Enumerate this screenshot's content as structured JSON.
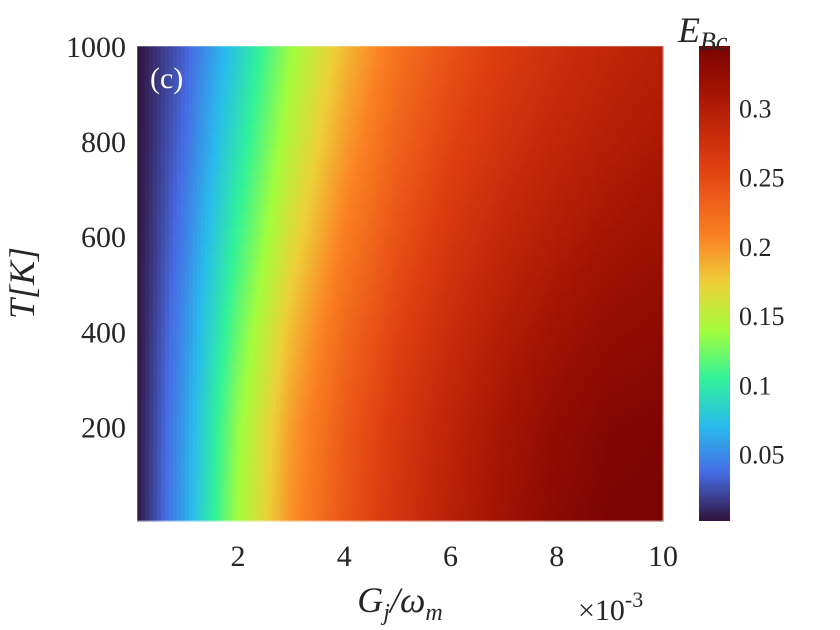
{
  "chart_data": {
    "type": "heatmap",
    "panel_label": "(c)",
    "xlabel": "G_j/ω_m",
    "xlabel_main": "G",
    "xlabel_sub1": "j",
    "xlabel_slash": "/ω",
    "xlabel_sub2": "m",
    "ylabel": "T[K]",
    "colorbar_label": "E_Bc",
    "colorbar_label_main": "E",
    "colorbar_label_sub": "Bc",
    "x_multiplier": "×10",
    "x_multiplier_exp": "-3",
    "xlim": [
      0.1,
      10
    ],
    "ylim": [
      1,
      1000
    ],
    "clim": [
      0.002,
      0.345
    ],
    "x_ticks": [
      2,
      4,
      6,
      8,
      10
    ],
    "x_tick_labels": [
      "2",
      "4",
      "6",
      "8",
      "10"
    ],
    "y_ticks": [
      200,
      400,
      600,
      800,
      1000
    ],
    "y_tick_labels": [
      "200",
      "400",
      "600",
      "800",
      "1000"
    ],
    "colorbar_ticks": [
      0.05,
      0.1,
      0.15,
      0.2,
      0.25,
      0.3
    ],
    "colorbar_tick_labels": [
      "0.05",
      "0.1",
      "0.15",
      "0.2",
      "0.25",
      "0.3"
    ],
    "colormap": "turbo",
    "x": [
      0.1,
      1,
      2,
      3,
      4,
      5,
      6,
      7,
      8,
      9,
      10
    ],
    "y": [
      1,
      200,
      400,
      600,
      800,
      1000
    ],
    "z": [
      [
        0.003,
        0.06,
        0.14,
        0.2,
        0.24,
        0.27,
        0.295,
        0.315,
        0.333,
        0.343,
        0.345
      ],
      [
        0.003,
        0.058,
        0.135,
        0.195,
        0.236,
        0.266,
        0.29,
        0.31,
        0.327,
        0.338,
        0.341
      ],
      [
        0.002,
        0.052,
        0.122,
        0.182,
        0.225,
        0.256,
        0.28,
        0.299,
        0.314,
        0.325,
        0.33
      ],
      [
        0.002,
        0.045,
        0.108,
        0.165,
        0.21,
        0.243,
        0.268,
        0.286,
        0.3,
        0.311,
        0.318
      ],
      [
        0.002,
        0.038,
        0.094,
        0.15,
        0.195,
        0.23,
        0.255,
        0.273,
        0.287,
        0.298,
        0.306
      ],
      [
        0.002,
        0.032,
        0.082,
        0.137,
        0.182,
        0.218,
        0.243,
        0.262,
        0.276,
        0.287,
        0.296
      ]
    ]
  }
}
